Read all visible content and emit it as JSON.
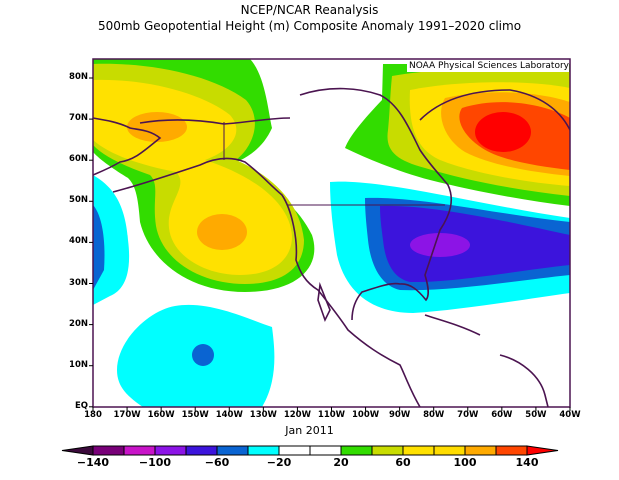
{
  "title": "NCEP/NCAR Reanalysis",
  "subtitle": "500mb Geopotential Height (m) Composite Anomaly 1991–2020 climo",
  "credit": "NOAA Physical Sciences Laboratory",
  "date_label": "Jan 2011",
  "map": {
    "projection": "cylindrical equidistant",
    "lon_range": [
      "180",
      "40W"
    ],
    "lat_range": [
      "EQ",
      "85N"
    ],
    "lat_labels": [
      "80N",
      "70N",
      "60N",
      "50N",
      "40N",
      "30N",
      "20N",
      "10N",
      "EQ"
    ],
    "lon_labels": [
      "180",
      "170W",
      "160W",
      "150W",
      "140W",
      "130W",
      "120W",
      "110W",
      "100W",
      "90W",
      "80W",
      "70W",
      "60W",
      "50W",
      "40W"
    ],
    "coastline_color": "#4b1450"
  },
  "colorbar": {
    "labels": [
      "−140",
      "−100",
      "−60",
      "−20",
      "20",
      "60",
      "100",
      "140"
    ],
    "low_arrow_color": "#3c0a3c",
    "high_arrow_color": "#ff0000",
    "colors": [
      "#780078",
      "#c814c8",
      "#8c14e6",
      "#3c14dc",
      "#0a64d2",
      "#00ffff",
      "#ffffff",
      "#ffffff",
      "#32dc00",
      "#c8dc00",
      "#ffe100",
      "#ffdc00",
      "#ffaa00",
      "#ff4600"
    ]
  }
}
